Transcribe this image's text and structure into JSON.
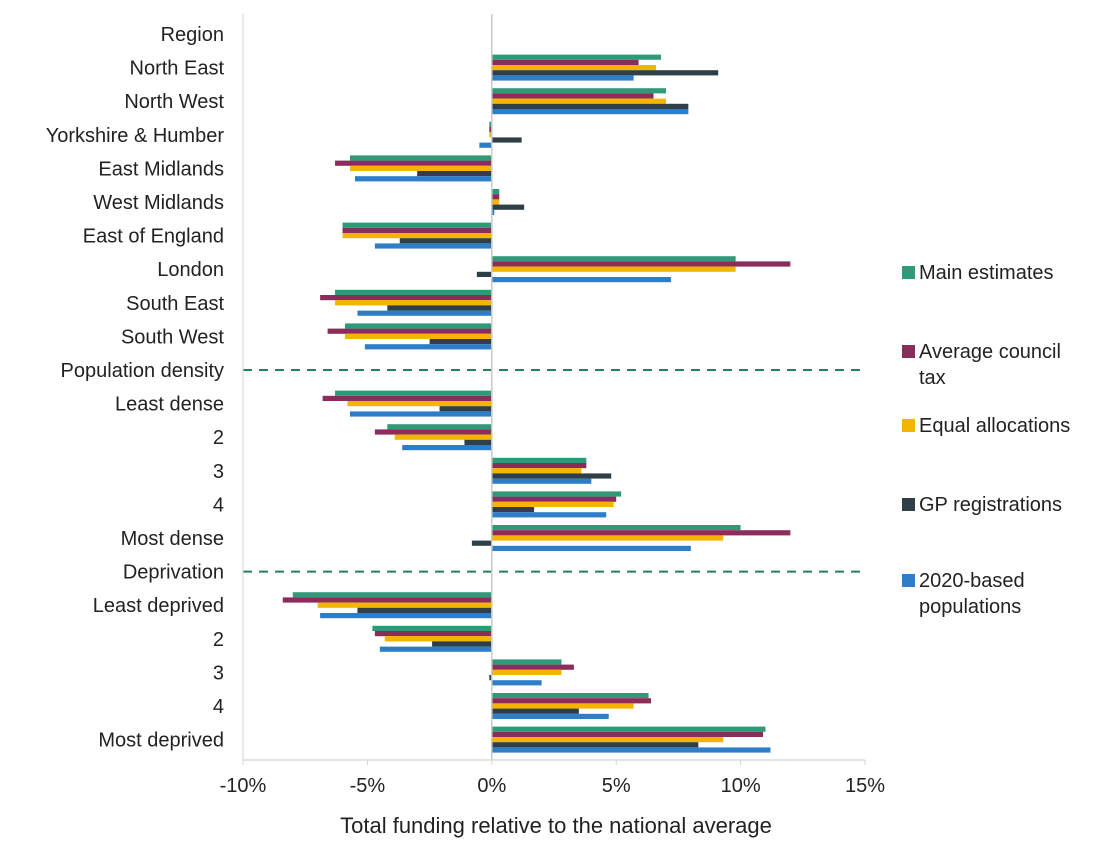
{
  "chart_data": {
    "type": "bar",
    "orientation": "horizontal",
    "xlabel": "Total funding relative to the national average",
    "xlim": [
      -10,
      15
    ],
    "xticks": [
      -10,
      -5,
      0,
      5,
      10,
      15
    ],
    "xtick_labels": [
      "-10%",
      "-5%",
      "0%",
      "5%",
      "10%",
      "15%"
    ],
    "grid": false,
    "legend_position": "right",
    "categories": [
      "Region",
      "North East",
      "North West",
      "Yorkshire & Humber",
      "East Midlands",
      "West Midlands",
      "East of England",
      "London",
      "South East",
      "South West",
      "Population density",
      "Least dense",
      "2",
      "3",
      "4",
      "Most dense",
      "Deprivation",
      "Least deprived",
      "2",
      "3",
      "4",
      "Most deprived"
    ],
    "group_headers": [
      "Region",
      "Population density",
      "Deprivation"
    ],
    "series": [
      {
        "name": "Main estimates",
        "color": "#2e9a77",
        "values": [
          null,
          6.8,
          7.0,
          -0.1,
          -5.7,
          0.3,
          -6.0,
          9.8,
          -6.3,
          -5.9,
          null,
          -6.3,
          -4.2,
          3.8,
          5.2,
          10.0,
          null,
          -8.0,
          -4.8,
          2.8,
          6.3,
          11.0
        ]
      },
      {
        "name": "Average council tax",
        "color": "#8b2d5b",
        "values": [
          null,
          5.9,
          6.5,
          -0.1,
          -6.3,
          0.3,
          -6.0,
          12.0,
          -6.9,
          -6.6,
          null,
          -6.8,
          -4.7,
          3.8,
          5.0,
          12.0,
          null,
          -8.4,
          -4.7,
          3.3,
          6.4,
          10.9
        ]
      },
      {
        "name": "Equal allocations",
        "color": "#f5b400",
        "values": [
          null,
          6.6,
          7.0,
          -0.1,
          -5.7,
          0.3,
          -6.0,
          9.8,
          -6.3,
          -5.9,
          null,
          -5.8,
          -3.9,
          3.6,
          4.9,
          9.3,
          null,
          -7.0,
          -4.3,
          2.8,
          5.7,
          9.3
        ]
      },
      {
        "name": "GP registrations",
        "color": "#2e3f48",
        "values": [
          null,
          9.1,
          7.9,
          1.2,
          -3.0,
          1.3,
          -3.7,
          -0.6,
          -4.2,
          -2.5,
          null,
          -2.1,
          -1.1,
          4.8,
          1.7,
          -0.8,
          null,
          -5.4,
          -2.4,
          -0.1,
          3.5,
          8.3
        ]
      },
      {
        "name": "2020-based populations",
        "color": "#2d7dc8",
        "values": [
          null,
          5.7,
          7.9,
          -0.5,
          -5.5,
          0.1,
          -4.7,
          7.2,
          -5.4,
          -5.1,
          null,
          -5.7,
          -3.6,
          4.0,
          4.6,
          8.0,
          null,
          -6.9,
          -4.5,
          2.0,
          4.7,
          11.2
        ]
      }
    ]
  }
}
